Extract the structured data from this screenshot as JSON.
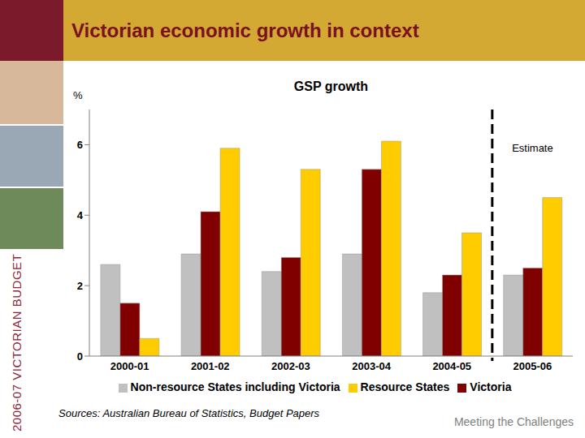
{
  "slide": {
    "title": "Victorian economic growth in context",
    "side_text": "2006-07 VICTORIAN BUDGET",
    "source": "Sources: Australian Bureau of Statistics, Budget Papers",
    "footer": "Meeting the Challenges"
  },
  "chart_data": {
    "type": "bar",
    "title": "GSP growth",
    "ylabel": "%",
    "categories": [
      "2000-01",
      "2001-02",
      "2002-03",
      "2003-04",
      "2004-05",
      "2005-06"
    ],
    "series": [
      {
        "name": "Non-resource States including Victoria",
        "color": "#c0c0c0",
        "values": [
          2.6,
          2.9,
          2.4,
          2.9,
          1.8,
          2.3
        ]
      },
      {
        "name": "Victoria",
        "color": "#800000",
        "values": [
          1.5,
          4.1,
          2.8,
          5.3,
          2.3,
          2.5
        ]
      },
      {
        "name": "Resource States",
        "color": "#ffcc00",
        "values": [
          0.5,
          5.9,
          5.3,
          6.1,
          3.5,
          4.5
        ]
      }
    ],
    "ylim": [
      0,
      7
    ],
    "yticks": [
      0,
      2,
      4,
      6
    ],
    "grid": false,
    "legend": "bottom",
    "annotations": [
      {
        "text": "Estimate",
        "x": "2005-06"
      }
    ]
  }
}
